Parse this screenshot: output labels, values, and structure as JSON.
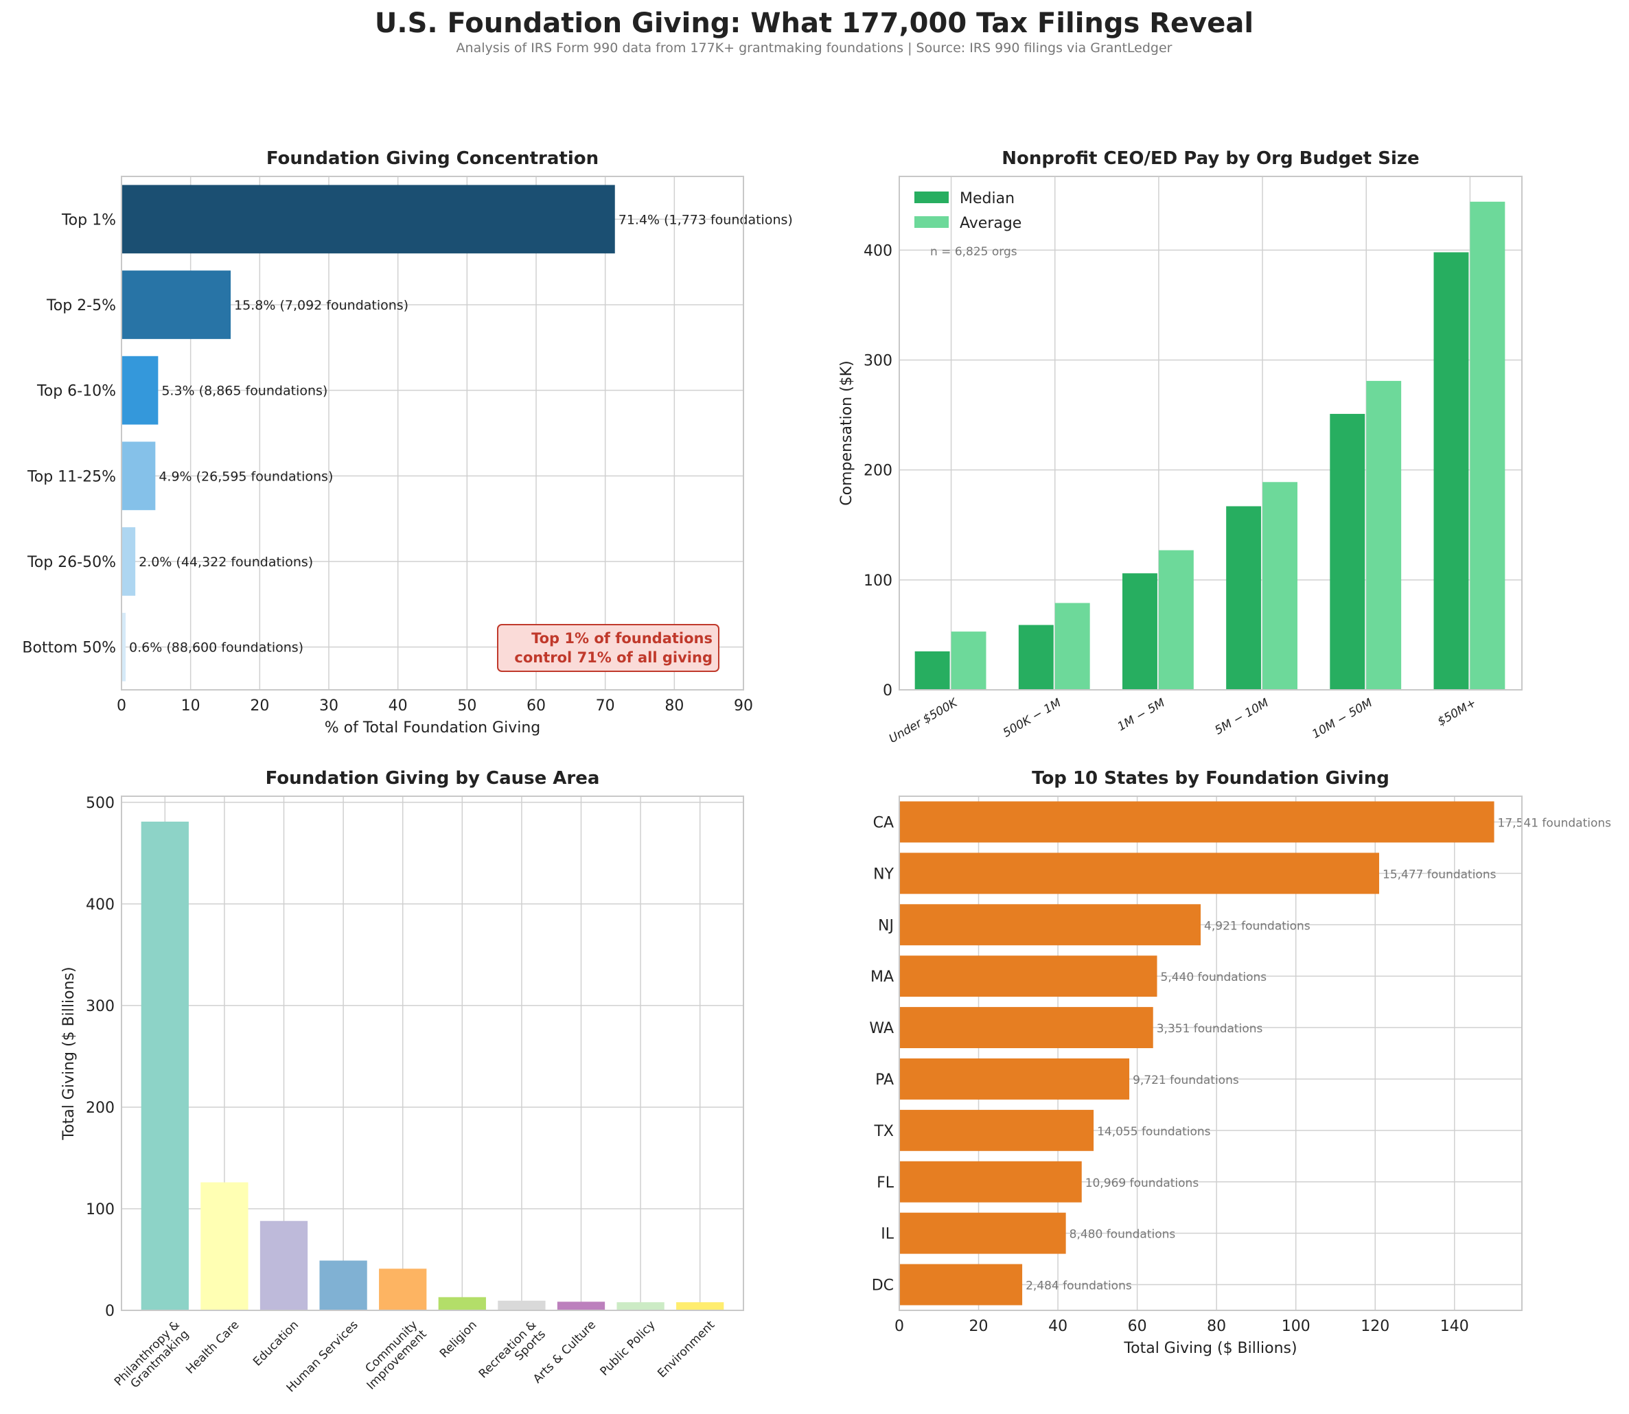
{
  "title": "U.S. Foundation Giving: What 177,000 Tax Filings Reveal",
  "subtitle": "Analysis of IRS Form 990 data from 177K+ grantmaking foundations | Source: IRS 990 filings via GrantLedger",
  "chart_data": [
    {
      "type": "bar",
      "orientation": "horizontal",
      "title": "Foundation Giving Concentration",
      "xlabel": "% of Total Foundation Giving",
      "ylabel": "",
      "xlim": [
        0,
        90
      ],
      "xticks": [
        0,
        10,
        20,
        30,
        40,
        50,
        60,
        70,
        80,
        90
      ],
      "categories": [
        "Top 1%",
        "Top 2-5%",
        "Top 6-10%",
        "Top 11-25%",
        "Top 26-50%",
        "Bottom 50%"
      ],
      "values": [
        71.4,
        15.8,
        5.3,
        4.9,
        2.0,
        0.6
      ],
      "labels": [
        "71.4% (1,773 foundations)",
        "15.8% (7,092 foundations)",
        "5.3% (8,865 foundations)",
        "4.9% (26,595 foundations)",
        "2.0% (44,322 foundations)",
        "0.6% (88,600 foundations)"
      ],
      "colors": [
        "#1b4f72",
        "#2874a6",
        "#3498db",
        "#85c1e9",
        "#aed6f1",
        "#d6eaf8"
      ],
      "annotation": [
        "Top 1% of foundations",
        "control 71% of all giving"
      ],
      "annotation_color": "#c0392b"
    },
    {
      "type": "bar",
      "title": "Nonprofit CEO/ED Pay by Org Budget Size",
      "xlabel": "",
      "ylabel": "Compensation ($K)",
      "ylim": [
        0,
        467
      ],
      "yticks": [
        0,
        100,
        200,
        300,
        400
      ],
      "categories": [
        "Under $500K",
        "500K − 1M",
        "1M − 5M",
        "5M − 10M",
        "10M − 50M",
        "$50M+"
      ],
      "series": [
        {
          "name": "Median",
          "color": "#27ae60",
          "values": [
            35,
            59,
            106,
            167,
            251,
            398
          ]
        },
        {
          "name": "Average",
          "color": "#6dd99a",
          "values": [
            53,
            79,
            127,
            189,
            281,
            444
          ]
        }
      ],
      "legend": "top-left",
      "note": "n = 6,825 orgs"
    },
    {
      "type": "bar",
      "title": "Foundation Giving by Cause Area",
      "xlabel": "",
      "ylabel": "Total Giving ($ Billions)",
      "ylim": [
        0,
        506
      ],
      "yticks": [
        0,
        100,
        200,
        300,
        400,
        500
      ],
      "categories": [
        [
          "Philanthropy &",
          "Grantmaking"
        ],
        [
          "Health Care"
        ],
        [
          "Education"
        ],
        [
          "Human Services"
        ],
        [
          "Community",
          "Improvement"
        ],
        [
          "Religion"
        ],
        [
          "Recreation &",
          "Sports"
        ],
        [
          "Arts & Culture"
        ],
        [
          "Public Policy"
        ],
        [
          "Environment"
        ]
      ],
      "values": [
        481,
        126,
        88,
        49,
        41,
        13,
        9.5,
        8.5,
        8,
        8
      ],
      "colors": [
        "#8dd3c7",
        "#ffffb3",
        "#bebada",
        "#80b1d3",
        "#fdb462",
        "#b3de69",
        "#d9d9d9",
        "#bc80bd",
        "#ccebc5",
        "#ffed6f"
      ]
    },
    {
      "type": "bar",
      "orientation": "horizontal",
      "title": "Top 10 States by Foundation Giving",
      "xlabel": "Total Giving ($ Billions)",
      "ylabel": "",
      "xlim": [
        0,
        157
      ],
      "xticks": [
        0,
        20,
        40,
        60,
        80,
        100,
        120,
        140
      ],
      "categories": [
        "CA",
        "NY",
        "NJ",
        "MA",
        "WA",
        "PA",
        "TX",
        "FL",
        "IL",
        "DC"
      ],
      "values": [
        150,
        121,
        76,
        65,
        64,
        58,
        49,
        46,
        42,
        31
      ],
      "labels": [
        "17,541 foundations",
        "15,477 foundations",
        "4,921 foundations",
        "5,440 foundations",
        "3,351 foundations",
        "9,721 foundations",
        "14,055 foundations",
        "10,969 foundations",
        "8,480 foundations",
        "2,484 foundations"
      ],
      "color": "#e67e22"
    }
  ]
}
